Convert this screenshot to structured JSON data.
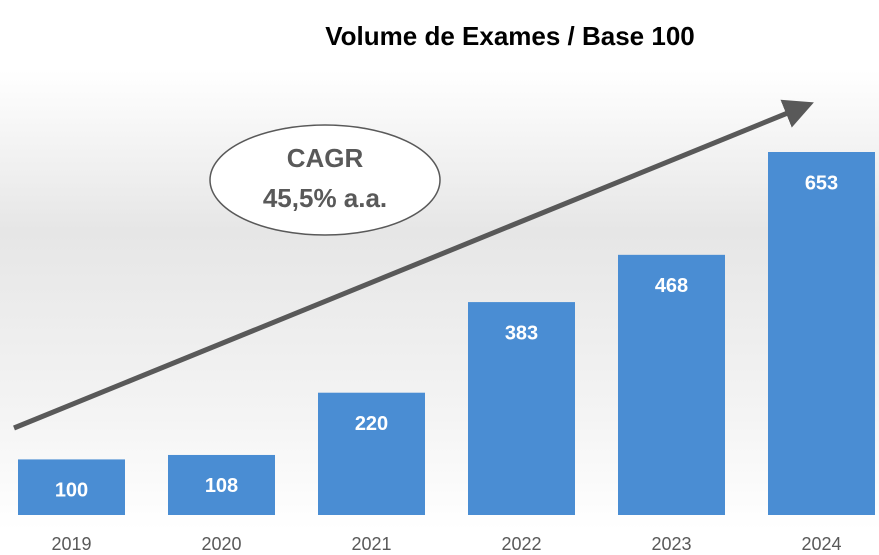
{
  "chart_data": {
    "type": "bar",
    "title": "Volume de Exames / Base 100",
    "categories": [
      "2019",
      "2020",
      "2021",
      "2022",
      "2023",
      "2024"
    ],
    "values": [
      100,
      108,
      220,
      383,
      468,
      653
    ],
    "color": "#4a8dd3",
    "annotations": [
      "CAGR",
      "45,5% a.a."
    ]
  }
}
